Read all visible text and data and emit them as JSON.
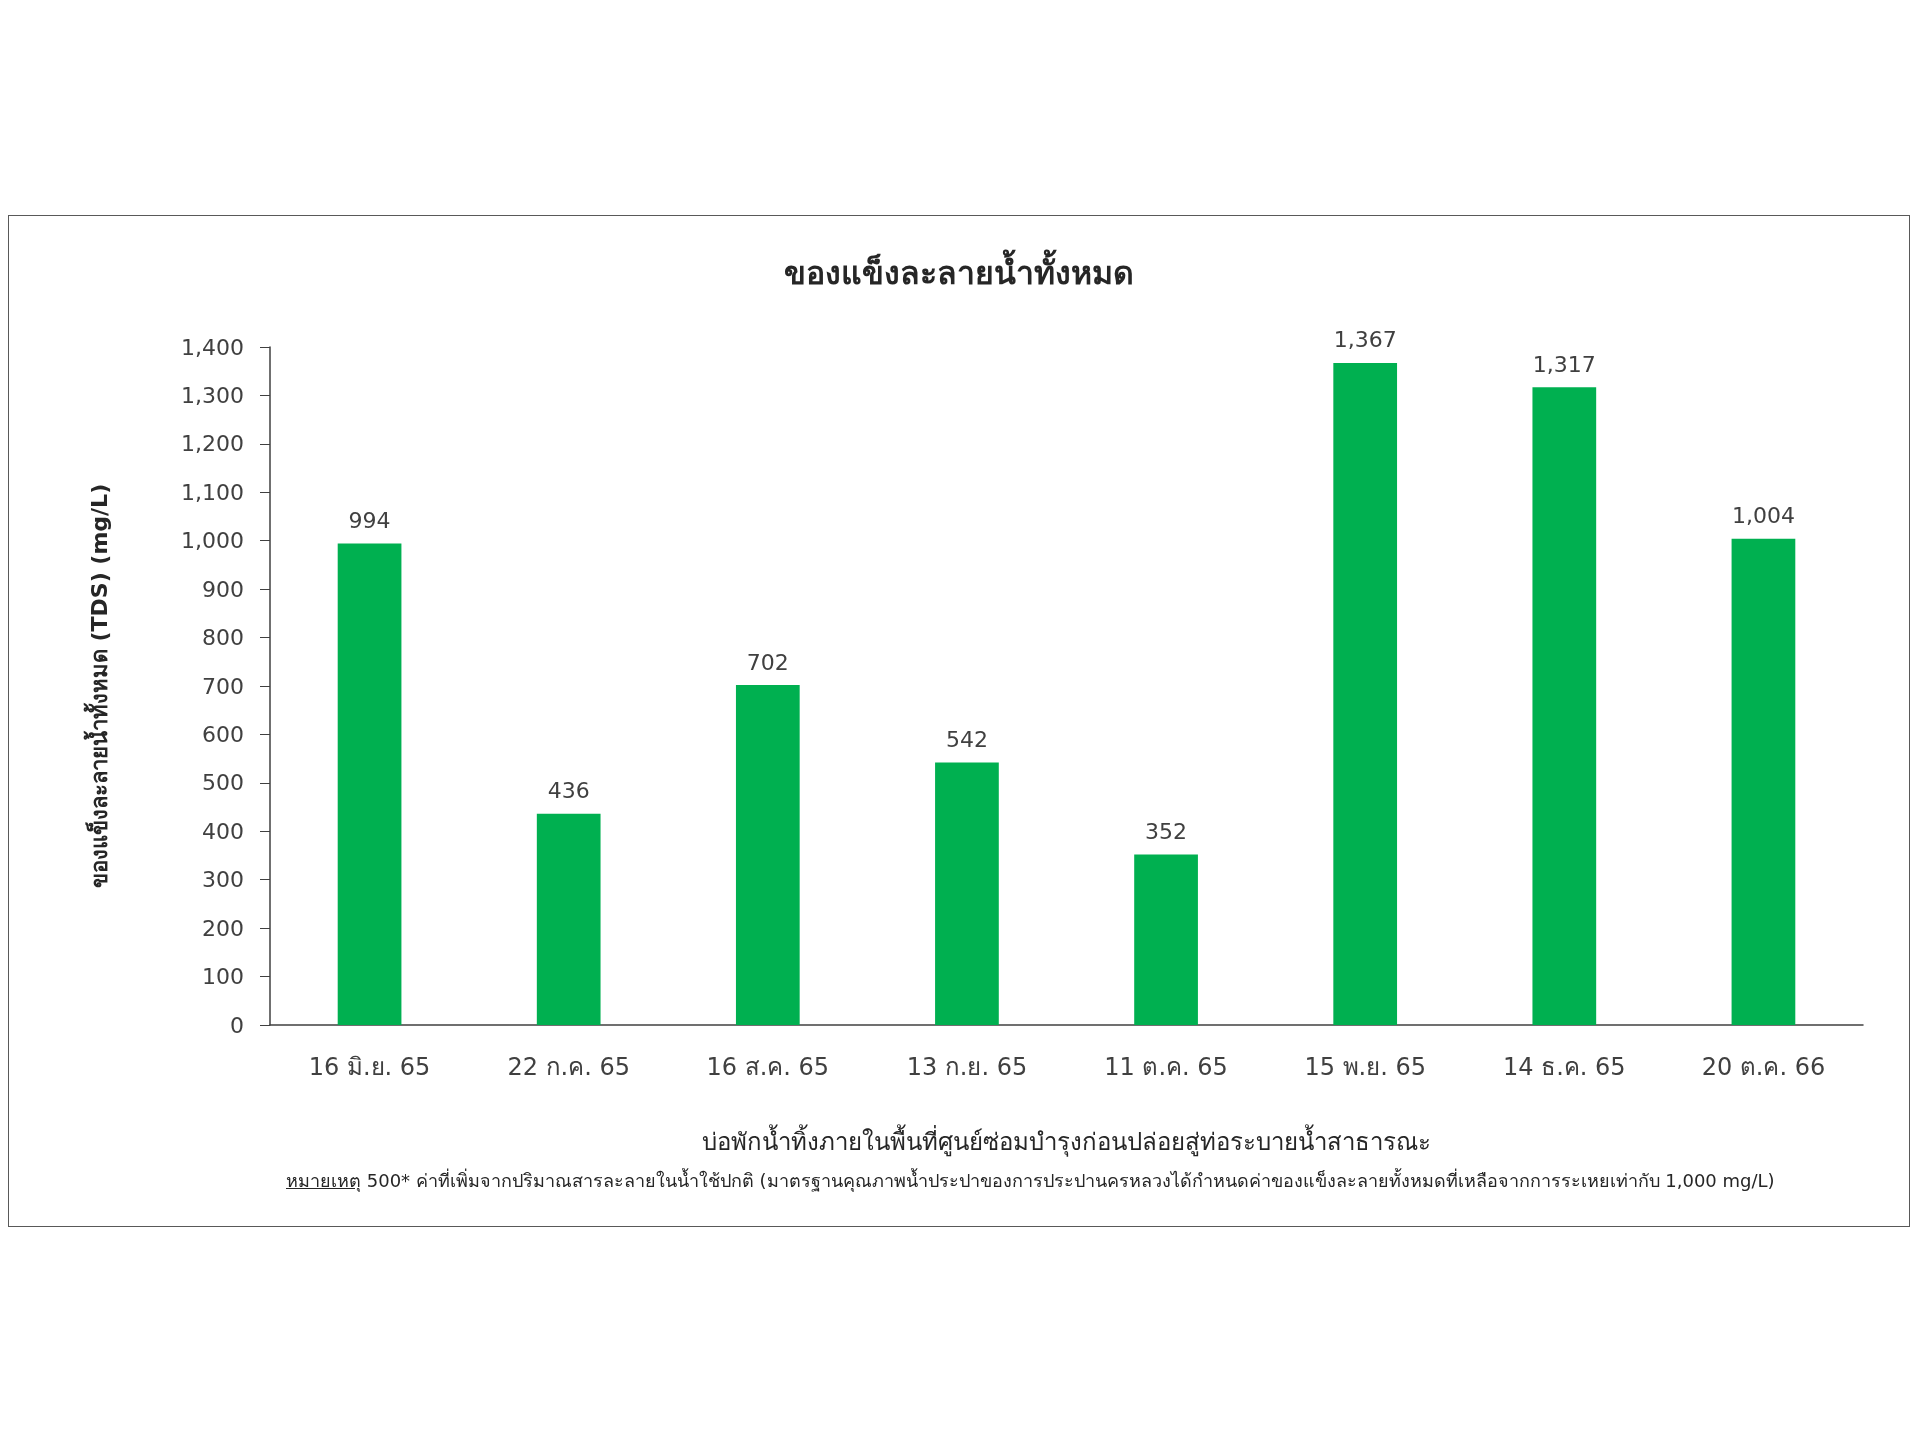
{
  "chart_data": {
    "type": "bar",
    "title": "ของแข็งละลายน้ำทั้งหมด",
    "xlabel": "บ่อพักน้ำทิ้งภายในพื้นที่ศูนย์ซ่อมบำรุงก่อนปล่อยสู่ท่อระบายน้ำสาธารณะ",
    "ylabel": "ของแข็งละลายน้ำทั้งหมด (TDS) (mg/L)",
    "categories": [
      "16 มิ.ย. 65",
      "22 ก.ค. 65",
      "16 ส.ค. 65",
      "13 ก.ย. 65",
      "11 ต.ค. 65",
      "15 พ.ย. 65",
      "14 ธ.ค. 65",
      "20 ต.ค. 66"
    ],
    "values": [
      994,
      436,
      702,
      542,
      352,
      1367,
      1317,
      1004
    ],
    "value_labels": [
      "994",
      "436",
      "702",
      "542",
      "352",
      "1,367",
      "1,317",
      "1,004"
    ],
    "color": "#00b050",
    "ylim": [
      0,
      1400
    ],
    "yticks": [
      0,
      100,
      200,
      300,
      400,
      500,
      600,
      700,
      800,
      900,
      {
        "value": 1000,
        "label": "1,000"
      },
      {
        "value": 1100,
        "label": "1,100"
      },
      {
        "value": 1200,
        "label": "1,200"
      },
      {
        "value": 1300,
        "label": "1,300"
      },
      {
        "value": 1400,
        "label": "1,400"
      }
    ],
    "annotations": [
      "หมายเหตุ 500* ค่าที่เพิ่มจากปริมาณสารละลายในน้ำใช้ปกติ (มาตรฐานคุณภาพน้ำประปาของการประปานครหลวงได้กำหนดค่าของแข็งละลายทั้งหมดที่เหลือจากการระเหยเท่ากับ 1,000 mg/L)"
    ]
  }
}
